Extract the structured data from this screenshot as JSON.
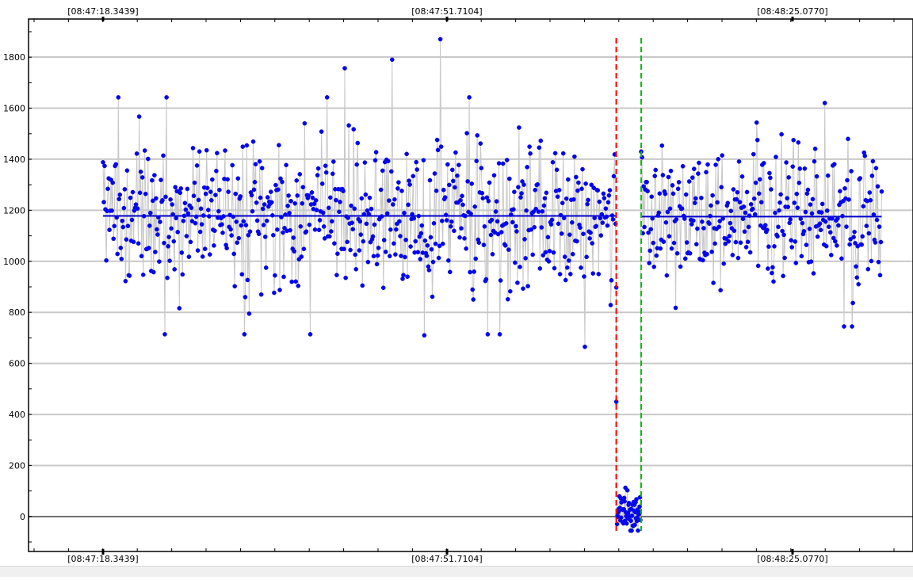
{
  "chart_data": {
    "type": "scatter",
    "title": "",
    "xlabel": "",
    "ylabel": "",
    "time_labels": [
      "[08:47:18.3439]",
      "[08:47:51.7104]",
      "[08:48:25.0770]"
    ],
    "y_ticks": [
      0,
      200,
      400,
      600,
      800,
      1000,
      1200,
      1400,
      1600,
      1800
    ],
    "ylim": [
      -60,
      1940
    ],
    "xlim": [
      0,
      1000
    ],
    "grid": true,
    "series": [
      {
        "segment": "before",
        "x_range": [
          0,
          638
        ],
        "n": 640,
        "center": 1178,
        "sd": 145,
        "min": 700,
        "max": 1870,
        "seed": 7
      },
      {
        "segment": "drop",
        "x_range": [
          639,
          668
        ],
        "n": 60,
        "center": 15,
        "sd": 40,
        "min": -55,
        "max": 160,
        "seed": 23
      },
      {
        "segment": "after",
        "x_range": [
          670,
          968
        ],
        "n": 300,
        "center": 1175,
        "sd": 140,
        "min": 745,
        "max": 1620,
        "seed": 41
      }
    ],
    "transition_points": [
      [
        638,
        450
      ],
      [
        669,
        1430
      ]
    ],
    "mean_lines": [
      {
        "from": 0,
        "to": 638,
        "y": 1178
      },
      {
        "from": 670,
        "to": 968,
        "y": 1175
      }
    ],
    "markers": [
      {
        "color": "#ff0000",
        "x": 638,
        "style": "dashed"
      },
      {
        "color": "#00c000",
        "x": 669,
        "style": "dashed"
      }
    ],
    "colors": {
      "points": "#0000ff",
      "point_stroke": "#1f1fbf",
      "connect_line": "#c8c8c8",
      "mean_line": "#0000cc",
      "grid": "#c8c8c8",
      "zero_line": "#707070"
    }
  }
}
